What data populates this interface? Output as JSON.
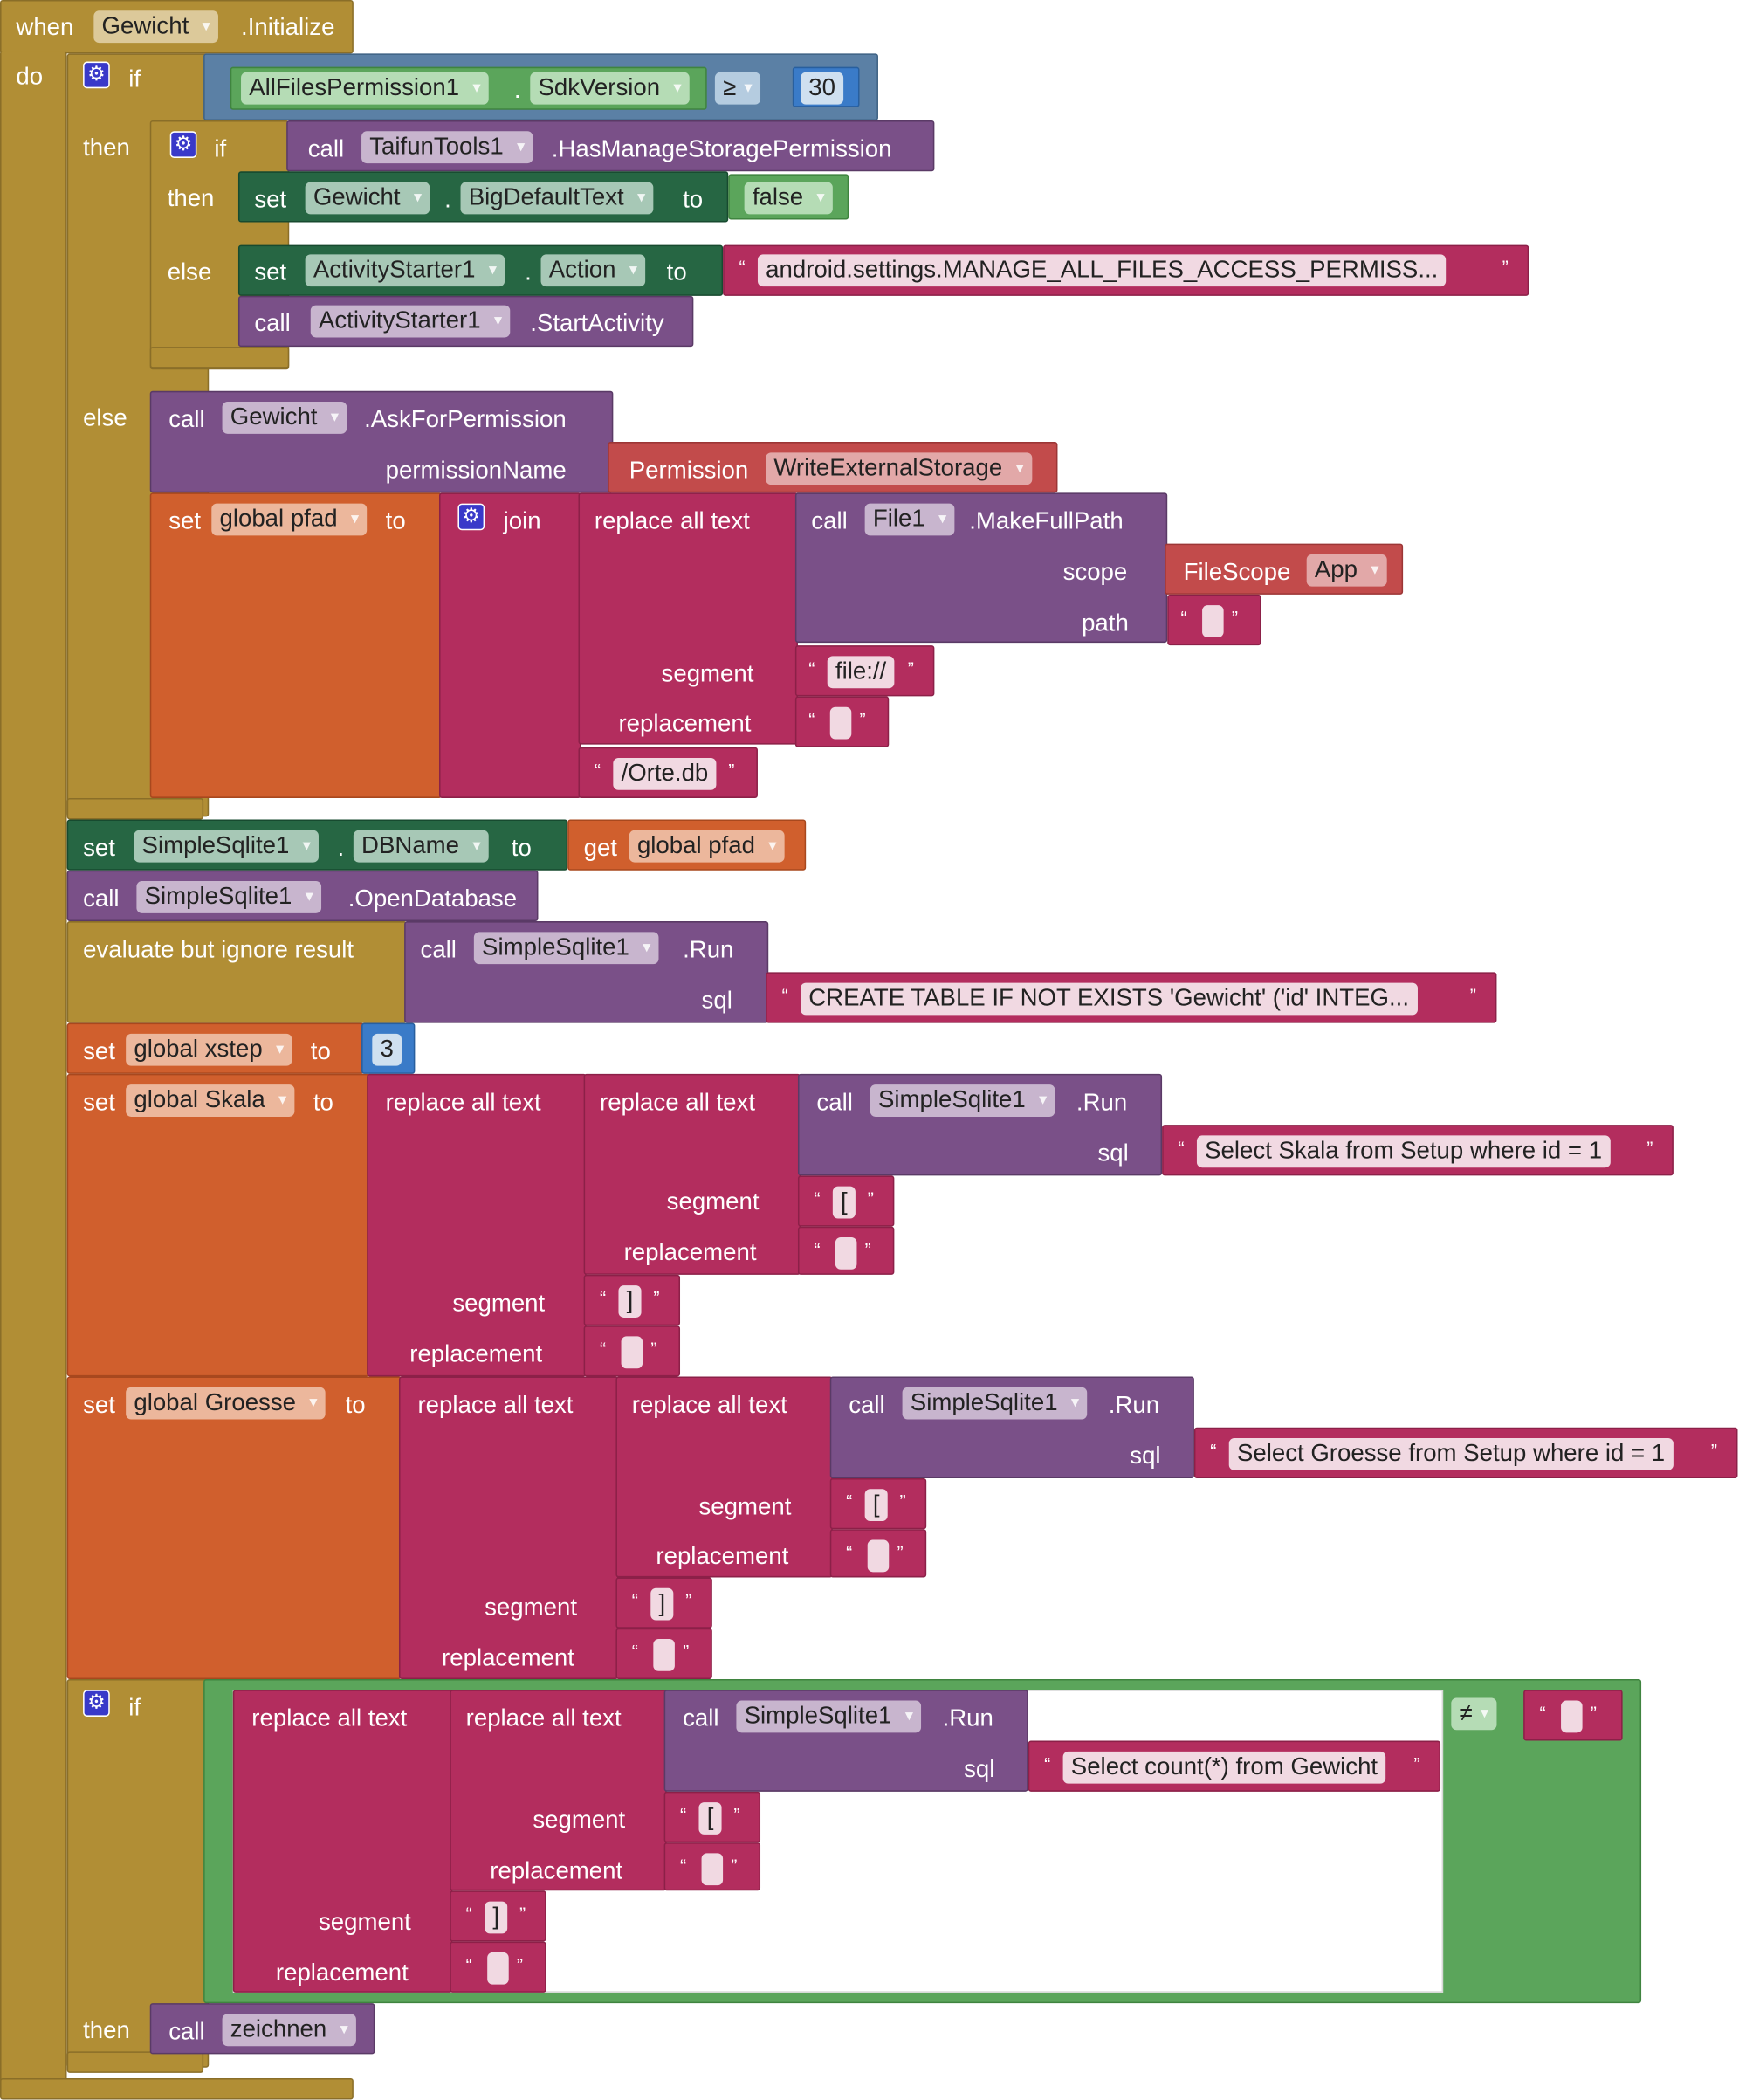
{
  "event": {
    "when": "when",
    "component": "Gewicht",
    "event_name": ".Initialize",
    "do": "do"
  },
  "kw": {
    "if": "if",
    "then": "then",
    "else": "else",
    "set": "set",
    "call": "call",
    "to": "to",
    "dot": ".",
    "get": "get"
  },
  "sdk_check": {
    "component": "AllFilesPermission1",
    "property": "SdkVersion",
    "op": "≥",
    "value": "30"
  },
  "has_manage": {
    "component": "TaifunTools1",
    "method": ".HasManageStoragePermission"
  },
  "set_bigtext": {
    "component": "Gewicht",
    "property": "BigDefaultText",
    "value": "false"
  },
  "set_action": {
    "component": "ActivityStarter1",
    "property": "Action",
    "value": "android.settings.MANAGE_ALL_FILES_ACCESS_PERMISS..."
  },
  "start_activity": {
    "component": "ActivityStarter1",
    "method": ".StartActivity"
  },
  "ask_permission": {
    "component": "Gewicht",
    "method": ".AskForPermission",
    "param": "permissionName",
    "helper": "Permission",
    "value": "WriteExternalStorage"
  },
  "set_pfad": {
    "var": "global pfad",
    "join": "join",
    "replace": "replace all text",
    "component": "File1",
    "method": ".MakeFullPath",
    "scope_label": "scope",
    "scope_helper": "FileScope",
    "scope_value": "App",
    "path_label": "path",
    "segment_label": "segment",
    "replacement_label": "replacement",
    "segment_value": "file://",
    "tail": "/Orte.db"
  },
  "set_dbname": {
    "component": "SimpleSqlite1",
    "property": "DBName",
    "get_var": "global pfad"
  },
  "open_db": {
    "component": "SimpleSqlite1",
    "method": ".OpenDatabase"
  },
  "evaluate": {
    "label": "evaluate but ignore result",
    "component": "SimpleSqlite1",
    "method": ".Run",
    "sql_label": "sql",
    "sql": "CREATE TABLE IF NOT EXISTS 'Gewicht' ('id' INTEG..."
  },
  "set_xstep": {
    "var": "global xstep",
    "value": "3"
  },
  "set_skala": {
    "var": "global Skala",
    "sql": "Select Skala from Setup where id = 1"
  },
  "set_groesse": {
    "var": "global Groesse",
    "sql": "Select Groesse from Setup where id = 1"
  },
  "if_count": {
    "sql": "Select count(*) from Gewicht",
    "op": "≠",
    "then_call": "zeichnen"
  },
  "common": {
    "replace": "replace all text",
    "segment": "segment",
    "replacement": "replacement",
    "call": "call",
    "component": "SimpleSqlite1",
    "run": ".Run",
    "sql": "sql",
    "lbr": "[",
    "rbr": "]",
    "oq": "“",
    "cq": "”"
  }
}
